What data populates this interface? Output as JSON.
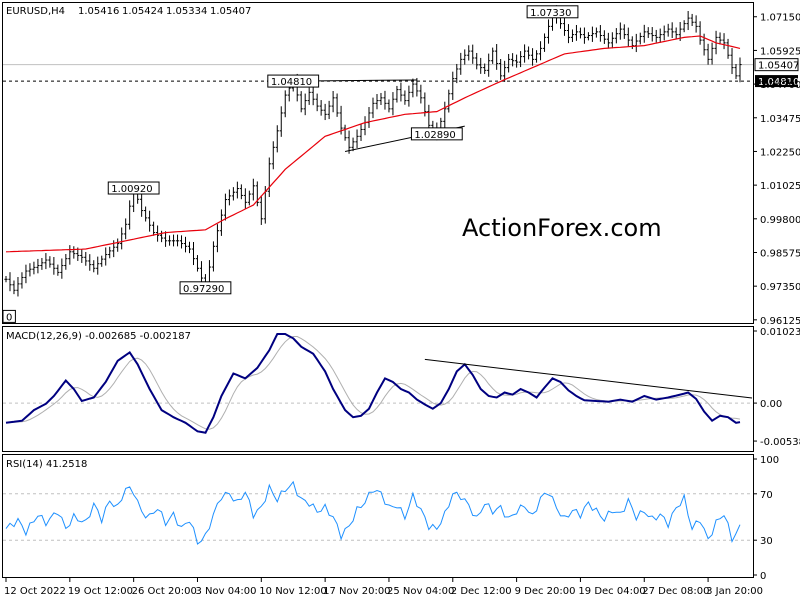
{
  "header": {
    "symbol": "EURUSD,H4",
    "open": "1.05416",
    "high": "1.05424",
    "low": "1.05334",
    "close": "1.05407"
  },
  "watermark": "ActionForex.com",
  "colors": {
    "candle": "#000000",
    "ma": "#e8000b",
    "macd": "#000080",
    "signal": "#b0b0b0",
    "rsi": "#1e90ff",
    "grid": "#c0c0c0"
  },
  "chart_data": [
    {
      "type": "line",
      "title": "EURUSD,H4",
      "price_ticks": [
        "1.07150",
        "1.05925",
        "1.04700",
        "1.03475",
        "1.02250",
        "1.01025",
        "0.99800",
        "0.98575",
        "0.97350",
        "0.96125"
      ],
      "price_tick_values": [
        1.0715,
        1.05925,
        1.047,
        1.03475,
        1.0225,
        1.01025,
        0.998,
        0.98575,
        0.9735,
        0.96125
      ],
      "ylim": [
        0.9601,
        1.0765
      ],
      "current_price": "1.05407",
      "current_price_value": 1.05407,
      "level_price": "1.04810",
      "level_value": 1.0481,
      "annotations": [
        {
          "label": "1.07330",
          "index": 137,
          "value": 1.0733
        },
        {
          "label": "1.04810",
          "index": 72,
          "value": 1.0481
        },
        {
          "label": "1.02890",
          "index": 108,
          "value": 1.0289
        },
        {
          "label": "1.00920",
          "index": 32,
          "value": 1.0092
        },
        {
          "label": "0.97290",
          "index": 50,
          "value": 0.9729
        },
        {
          "label": "0",
          "index": 0,
          "value": 0.9625
        }
      ],
      "trendlines": [
        {
          "from": [
            72,
            1.0481
          ],
          "to": [
            103,
            1.0485
          ]
        },
        {
          "from": [
            85,
            1.0225
          ],
          "to": [
            115,
            1.0317
          ]
        }
      ],
      "price_anchors": [
        [
          0,
          0.976
        ],
        [
          2,
          0.972
        ],
        [
          5,
          0.979
        ],
        [
          8,
          0.981
        ],
        [
          10,
          0.983
        ],
        [
          13,
          0.9785
        ],
        [
          16,
          0.986
        ],
        [
          19,
          0.984
        ],
        [
          22,
          0.98
        ],
        [
          25,
          0.985
        ],
        [
          28,
          0.989
        ],
        [
          30,
          0.996
        ],
        [
          32,
          1.0092
        ],
        [
          34,
          1.001
        ],
        [
          37,
          0.993
        ],
        [
          40,
          0.99
        ],
        [
          43,
          0.99
        ],
        [
          46,
          0.987
        ],
        [
          48,
          0.98
        ],
        [
          50,
          0.9729
        ],
        [
          52,
          0.988
        ],
        [
          55,
          1.005
        ],
        [
          58,
          1.009
        ],
        [
          60,
          1.004
        ],
        [
          62,
          1.01
        ],
        [
          64,
          0.998
        ],
        [
          66,
          1.018
        ],
        [
          68,
          1.03
        ],
        [
          70,
          1.043
        ],
        [
          72,
          1.0481
        ],
        [
          74,
          1.038
        ],
        [
          76,
          1.044
        ],
        [
          78,
          1.039
        ],
        [
          80,
          1.036
        ],
        [
          82,
          1.042
        ],
        [
          84,
          1.031
        ],
        [
          86,
          1.024
        ],
        [
          88,
          1.028
        ],
        [
          90,
          1.033
        ],
        [
          92,
          1.04
        ],
        [
          94,
          1.042
        ],
        [
          96,
          1.038
        ],
        [
          98,
          1.045
        ],
        [
          100,
          1.041
        ],
        [
          102,
          1.047
        ],
        [
          104,
          1.042
        ],
        [
          106,
          1.032
        ],
        [
          108,
          1.0289
        ],
        [
          110,
          1.038
        ],
        [
          112,
          1.049
        ],
        [
          114,
          1.056
        ],
        [
          116,
          1.059
        ],
        [
          118,
          1.054
        ],
        [
          120,
          1.052
        ],
        [
          122,
          1.059
        ],
        [
          124,
          1.05
        ],
        [
          126,
          1.056
        ],
        [
          128,
          1.055
        ],
        [
          130,
          1.059
        ],
        [
          132,
          1.056
        ],
        [
          134,
          1.06
        ],
        [
          136,
          1.068
        ],
        [
          137,
          1.0733
        ],
        [
          139,
          1.069
        ],
        [
          141,
          1.064
        ],
        [
          143,
          1.066
        ],
        [
          145,
          1.064
        ],
        [
          148,
          1.066
        ],
        [
          151,
          1.062
        ],
        [
          154,
          1.067
        ],
        [
          157,
          1.061
        ],
        [
          160,
          1.066
        ],
        [
          163,
          1.064
        ],
        [
          166,
          1.067
        ],
        [
          168,
          1.065
        ],
        [
          170,
          1.069
        ],
        [
          171,
          1.071
        ],
        [
          173,
          1.068
        ],
        [
          174,
          1.063
        ],
        [
          176,
          1.056
        ],
        [
          178,
          1.064
        ],
        [
          180,
          1.062
        ],
        [
          182,
          1.053
        ],
        [
          183,
          1.05
        ],
        [
          184,
          1.0541
        ]
      ],
      "ma_anchors": [
        [
          0,
          0.986
        ],
        [
          20,
          0.987
        ],
        [
          40,
          0.993
        ],
        [
          50,
          0.994
        ],
        [
          55,
          0.998
        ],
        [
          62,
          1.003
        ],
        [
          70,
          1.016
        ],
        [
          80,
          1.028
        ],
        [
          90,
          1.033
        ],
        [
          100,
          1.036
        ],
        [
          108,
          1.037
        ],
        [
          115,
          1.042
        ],
        [
          124,
          1.048
        ],
        [
          132,
          1.053
        ],
        [
          140,
          1.058
        ],
        [
          150,
          1.06
        ],
        [
          160,
          1.061
        ],
        [
          170,
          1.064
        ],
        [
          174,
          1.0645
        ],
        [
          178,
          1.062
        ],
        [
          184,
          1.06
        ]
      ]
    },
    {
      "type": "line",
      "title": "MACD(12,26,9) -0.002685 -0.002187",
      "ticks": [
        "0.010232",
        "0.00",
        "-0.005389"
      ],
      "tick_values": [
        0.010232,
        0.0,
        -0.005389
      ],
      "ylim": [
        -0.0068,
        0.0108
      ],
      "macd_anchors": [
        [
          0,
          -0.0028
        ],
        [
          4,
          -0.0025
        ],
        [
          7,
          -0.001
        ],
        [
          10,
          -0.0001
        ],
        [
          12,
          0.001
        ],
        [
          15,
          0.0032
        ],
        [
          17,
          0.002
        ],
        [
          19,
          0.0003
        ],
        [
          22,
          0.0008
        ],
        [
          25,
          0.003
        ],
        [
          28,
          0.006
        ],
        [
          31,
          0.0072
        ],
        [
          33,
          0.0055
        ],
        [
          36,
          0.002
        ],
        [
          39,
          -0.001
        ],
        [
          42,
          -0.002
        ],
        [
          45,
          -0.0028
        ],
        [
          48,
          -0.004
        ],
        [
          50,
          -0.0042
        ],
        [
          52,
          -0.002
        ],
        [
          54,
          0.001
        ],
        [
          57,
          0.0042
        ],
        [
          60,
          0.0035
        ],
        [
          63,
          0.005
        ],
        [
          66,
          0.0075
        ],
        [
          68,
          0.0098
        ],
        [
          70,
          0.0098
        ],
        [
          72,
          0.0092
        ],
        [
          74,
          0.008
        ],
        [
          77,
          0.007
        ],
        [
          80,
          0.0045
        ],
        [
          82,
          0.002
        ],
        [
          85,
          -0.001
        ],
        [
          87,
          -0.002
        ],
        [
          89,
          -0.0018
        ],
        [
          91,
          -0.0008
        ],
        [
          93,
          0.0015
        ],
        [
          95,
          0.0035
        ],
        [
          97,
          0.003
        ],
        [
          99,
          0.002
        ],
        [
          101,
          0.0015
        ],
        [
          103,
          0.0005
        ],
        [
          105,
          -0.0002
        ],
        [
          107,
          -0.0008
        ],
        [
          109,
          0.0
        ],
        [
          111,
          0.002
        ],
        [
          113,
          0.0045
        ],
        [
          115,
          0.0055
        ],
        [
          117,
          0.004
        ],
        [
          119,
          0.002
        ],
        [
          121,
          0.001
        ],
        [
          123,
          0.0008
        ],
        [
          125,
          0.0015
        ],
        [
          127,
          0.0012
        ],
        [
          129,
          0.002
        ],
        [
          131,
          0.0015
        ],
        [
          133,
          0.0008
        ],
        [
          135,
          0.0022
        ],
        [
          137,
          0.0035
        ],
        [
          139,
          0.003
        ],
        [
          141,
          0.0018
        ],
        [
          143,
          0.001
        ],
        [
          145,
          0.0004
        ],
        [
          148,
          0.0003
        ],
        [
          151,
          0.0002
        ],
        [
          154,
          0.0005
        ],
        [
          157,
          0.0002
        ],
        [
          160,
          0.001
        ],
        [
          163,
          0.0005
        ],
        [
          166,
          0.0008
        ],
        [
          169,
          0.0012
        ],
        [
          171,
          0.0015
        ],
        [
          173,
          0.0006
        ],
        [
          175,
          -0.0012
        ],
        [
          177,
          -0.0025
        ],
        [
          179,
          -0.0018
        ],
        [
          181,
          -0.002
        ],
        [
          183,
          -0.0028
        ],
        [
          184,
          -0.0027
        ]
      ],
      "trendline": {
        "from": [
          105,
          0.0062
        ],
        "to": [
          184,
          0.001
        ]
      }
    },
    {
      "type": "line",
      "title": "RSI(14) 41.2518",
      "ticks": [
        "100",
        "70",
        "30",
        "0"
      ],
      "tick_values": [
        100,
        70,
        30,
        0
      ],
      "ylim": [
        0,
        100
      ],
      "rsi_anchors": [
        [
          0,
          40
        ],
        [
          3,
          47
        ],
        [
          5,
          37
        ],
        [
          8,
          52
        ],
        [
          10,
          45
        ],
        [
          13,
          55
        ],
        [
          15,
          40
        ],
        [
          17,
          50
        ],
        [
          20,
          45
        ],
        [
          22,
          61
        ],
        [
          24,
          48
        ],
        [
          26,
          64
        ],
        [
          28,
          58
        ],
        [
          30,
          75
        ],
        [
          32,
          72
        ],
        [
          34,
          54
        ],
        [
          36,
          50
        ],
        [
          38,
          58
        ],
        [
          40,
          45
        ],
        [
          42,
          52
        ],
        [
          44,
          40
        ],
        [
          46,
          48
        ],
        [
          48,
          28
        ],
        [
          50,
          33
        ],
        [
          52,
          52
        ],
        [
          54,
          68
        ],
        [
          56,
          70
        ],
        [
          58,
          62
        ],
        [
          60,
          72
        ],
        [
          62,
          52
        ],
        [
          64,
          58
        ],
        [
          66,
          75
        ],
        [
          68,
          65
        ],
        [
          70,
          74
        ],
        [
          72,
          78
        ],
        [
          74,
          65
        ],
        [
          76,
          62
        ],
        [
          78,
          55
        ],
        [
          80,
          58
        ],
        [
          82,
          50
        ],
        [
          84,
          34
        ],
        [
          86,
          42
        ],
        [
          88,
          56
        ],
        [
          90,
          63
        ],
        [
          92,
          74
        ],
        [
          94,
          70
        ],
        [
          96,
          58
        ],
        [
          98,
          60
        ],
        [
          100,
          50
        ],
        [
          102,
          68
        ],
        [
          104,
          56
        ],
        [
          106,
          42
        ],
        [
          108,
          40
        ],
        [
          110,
          52
        ],
        [
          112,
          70
        ],
        [
          114,
          68
        ],
        [
          116,
          60
        ],
        [
          118,
          48
        ],
        [
          120,
          62
        ],
        [
          122,
          55
        ],
        [
          124,
          58
        ],
        [
          126,
          48
        ],
        [
          128,
          55
        ],
        [
          130,
          60
        ],
        [
          132,
          50
        ],
        [
          134,
          66
        ],
        [
          136,
          72
        ],
        [
          138,
          58
        ],
        [
          140,
          48
        ],
        [
          142,
          56
        ],
        [
          144,
          52
        ],
        [
          146,
          62
        ],
        [
          148,
          55
        ],
        [
          150,
          48
        ],
        [
          152,
          56
        ],
        [
          154,
          52
        ],
        [
          156,
          64
        ],
        [
          158,
          50
        ],
        [
          160,
          55
        ],
        [
          162,
          48
        ],
        [
          164,
          52
        ],
        [
          166,
          44
        ],
        [
          168,
          58
        ],
        [
          170,
          66
        ],
        [
          172,
          40
        ],
        [
          174,
          48
        ],
        [
          176,
          30
        ],
        [
          178,
          45
        ],
        [
          180,
          53
        ],
        [
          182,
          31
        ],
        [
          184,
          41
        ]
      ]
    }
  ],
  "time_axis": {
    "labels": [
      "12 Oct 2022",
      "19 Oct 12:00",
      "26 Oct 20:00",
      "3 Nov 04:00",
      "10 Nov 12:00",
      "17 Nov 20:00",
      "25 Nov 04:00",
      "2 Dec 12:00",
      "9 Dec 20:00",
      "19 Dec 04:00",
      "27 Dec 08:00",
      "3 Jan 20:00"
    ],
    "label_indices": [
      0,
      16,
      32,
      48,
      64,
      80,
      96,
      112,
      128,
      144,
      160,
      176
    ]
  }
}
